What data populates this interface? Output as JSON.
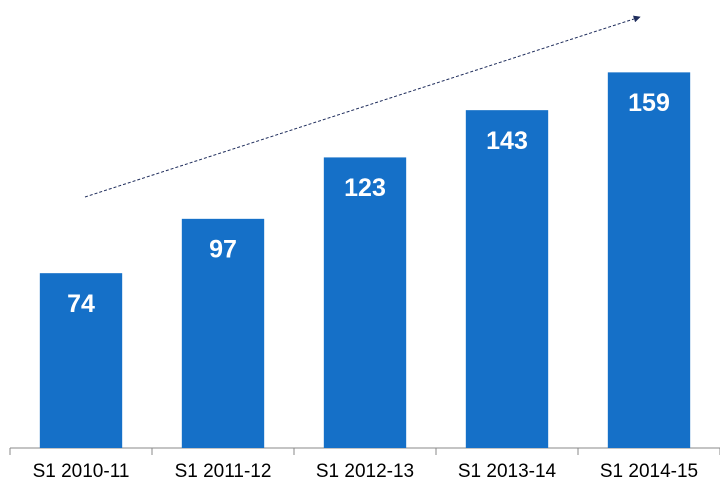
{
  "chart_data": {
    "type": "bar",
    "categories": [
      "S1 2010-11",
      "S1 2011-12",
      "S1 2012-13",
      "S1 2013-14",
      "S1 2014-15"
    ],
    "values": [
      74,
      97,
      123,
      143,
      159
    ],
    "color": "#1570c8",
    "ylim": [
      0,
      160
    ]
  }
}
